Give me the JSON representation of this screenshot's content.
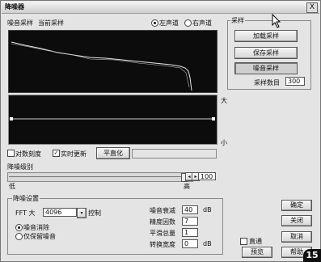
{
  "window": {
    "title": "降噪器",
    "close_label": "X"
  },
  "top": {
    "noise_sample": "噪音采样",
    "current_sample": "当前采样",
    "left_channel": "左声道",
    "right_channel": "右声道",
    "selected_channel": "left"
  },
  "sampling": {
    "group_label": "采样",
    "load_button": "加载采样",
    "save_button": "保存采样",
    "noise_sample_button": "噪音采样",
    "count_label": "采样数目",
    "count_value": "300"
  },
  "graph": {
    "big_label": "大",
    "small_label": "小"
  },
  "options": {
    "log_scale": "对数刻度",
    "log_checked": false,
    "realtime": "实时更新",
    "realtime_checked": true,
    "flatten_button": "平直化"
  },
  "level": {
    "label": "降噪级别",
    "low": "低",
    "high": "高",
    "value": "100",
    "slider_fraction": 0.95
  },
  "settings": {
    "group_label": "降噪设置",
    "fft_label": "FFT 大",
    "fft_value": "4096",
    "control_label": "控制",
    "radio_remove": "噪音消除",
    "radio_keep": "仅保留噪音",
    "remove_selected": true,
    "noise_floor_label": "噪音衰减",
    "noise_floor_value": "40",
    "noise_floor_unit": "dB",
    "precision_label": "精度因数",
    "precision_value": "7",
    "smoothing_label": "平滑总量",
    "smoothing_value": "1",
    "transition_label": "转换宽度",
    "transition_value": "0",
    "transition_unit": "dB"
  },
  "footer": {
    "bypass_label": "直通",
    "bypass_checked": false,
    "preview_button": "预览",
    "ok_button": "确定",
    "close_button": "关闭",
    "cancel_button": "取消",
    "help_button": "帮助"
  },
  "badge": "15"
}
